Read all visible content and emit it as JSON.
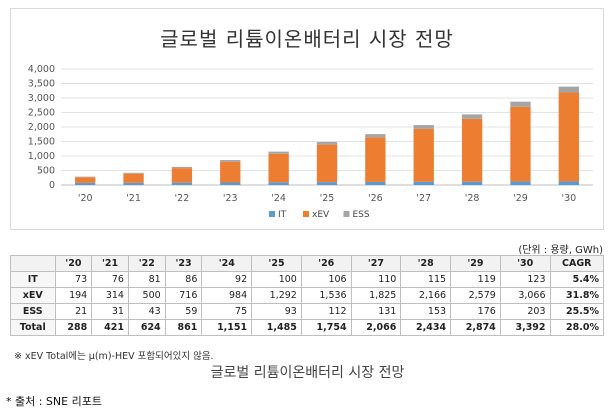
{
  "chart_data": {
    "type": "bar",
    "stacked": true,
    "title": "글로벌 리튬이온배터리 시장 전망",
    "categories": [
      "'20",
      "'21",
      "'22",
      "'23",
      "'24",
      "'25",
      "'26",
      "'27",
      "'28",
      "'29",
      "'30"
    ],
    "series": [
      {
        "name": "IT",
        "color": "#5b9bd5",
        "values": [
          73,
          76,
          81,
          86,
          92,
          100,
          106,
          110,
          115,
          119,
          123
        ]
      },
      {
        "name": "xEV",
        "color": "#ed7d31",
        "values": [
          194,
          314,
          500,
          716,
          984,
          1292,
          1536,
          1825,
          2166,
          2579,
          3066
        ]
      },
      {
        "name": "ESS",
        "color": "#a5a5a5",
        "values": [
          21,
          31,
          43,
          59,
          75,
          93,
          112,
          131,
          153,
          176,
          203
        ]
      }
    ],
    "y_ticks": [
      "0",
      "500",
      "1,000",
      "1,500",
      "2,000",
      "2,500",
      "3,000",
      "3,500",
      "4,000"
    ],
    "ylim": [
      0,
      4000
    ],
    "grid": true,
    "legend_position": "bottom"
  },
  "table": {
    "unit": "(단위 : 용량, GWh)",
    "headers": [
      "",
      "'20",
      "'21",
      "'22",
      "'23",
      "'24",
      "'25",
      "'26",
      "'27",
      "'28",
      "'29",
      "'30",
      "CAGR"
    ],
    "rows": [
      {
        "label": "IT",
        "values": [
          "73",
          "76",
          "81",
          "86",
          "92",
          "100",
          "106",
          "110",
          "115",
          "119",
          "123"
        ],
        "cagr": "5.4%"
      },
      {
        "label": "xEV",
        "values": [
          "194",
          "314",
          "500",
          "716",
          "984",
          "1,292",
          "1,536",
          "1,825",
          "2,166",
          "2,579",
          "3,066"
        ],
        "cagr": "31.8%"
      },
      {
        "label": "ESS",
        "values": [
          "21",
          "31",
          "43",
          "59",
          "75",
          "93",
          "112",
          "131",
          "153",
          "176",
          "203"
        ],
        "cagr": "25.5%"
      },
      {
        "label": "Total",
        "values": [
          "288",
          "421",
          "624",
          "861",
          "1,151",
          "1,485",
          "1,754",
          "2,066",
          "2,434",
          "2,874",
          "3,392"
        ],
        "cagr": "28.0%"
      }
    ]
  },
  "note": "※ xEV Total에는 μ(m)-HEV 포함되어있지 않음.",
  "caption": "글로벌 리튬이온배터리 시장 전망",
  "source": "* 출처 : SNE 리포트"
}
